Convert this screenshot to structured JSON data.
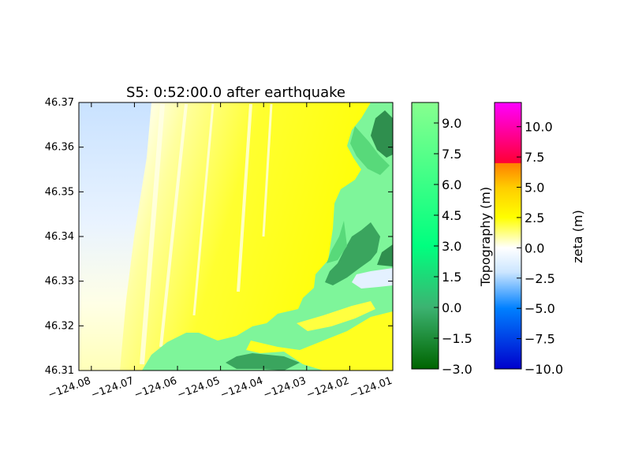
{
  "chart_data": {
    "type": "heatmap",
    "title": "S5: 0:52:00.0 after earthquake",
    "xlabel": "",
    "ylabel": "",
    "xlim": [
      -124.0829,
      -124.01
    ],
    "ylim": [
      46.31,
      46.37
    ],
    "x_ticks": [
      -124.08,
      -124.07,
      -124.06,
      -124.05,
      -124.04,
      -124.03,
      -124.02,
      -124.01
    ],
    "x_tick_labels": [
      "−124.08",
      "−124.07",
      "−124.06",
      "−124.05",
      "−124.04",
      "−124.03",
      "−124.02",
      "−124.01"
    ],
    "y_ticks": [
      46.31,
      46.32,
      46.33,
      46.34,
      46.35,
      46.36,
      46.37
    ],
    "y_tick_labels": [
      "46.31",
      "46.32",
      "46.33",
      "46.34",
      "46.35",
      "46.36",
      "46.37"
    ],
    "grid": false,
    "colorbars": [
      {
        "label": "Topography (m)",
        "range": [
          -3.0,
          10.0
        ],
        "ticks": [
          -3.0,
          -1.5,
          0.0,
          1.5,
          3.0,
          4.5,
          6.0,
          7.5,
          9.0
        ],
        "tick_labels": [
          "−3.0",
          "−1.5",
          "0.0",
          "1.5",
          "3.0",
          "4.5",
          "6.0",
          "7.5",
          "9.0"
        ],
        "colormap": [
          {
            "value": -3.0,
            "color": "#006400"
          },
          {
            "value": 0.0,
            "color": "#3cb371"
          },
          {
            "value": 3.0,
            "color": "#00ff7f"
          },
          {
            "value": 10.0,
            "color": "#87ff8f"
          }
        ]
      },
      {
        "label": "zeta (m)",
        "range": [
          -10.0,
          12.0
        ],
        "ticks": [
          -10.0,
          -7.5,
          -5.0,
          -2.5,
          0.0,
          2.5,
          5.0,
          7.5,
          10.0
        ],
        "tick_labels": [
          "−10.0",
          "−7.5",
          "−5.0",
          "−2.5",
          "0.0",
          "2.5",
          "5.0",
          "7.5",
          "10.0"
        ],
        "colormap": [
          {
            "value": -10.0,
            "color": "#0000cc"
          },
          {
            "value": -5.0,
            "color": "#0080ff"
          },
          {
            "value": -2.0,
            "color": "#cce6ff"
          },
          {
            "value": 0.0,
            "color": "#ffffff"
          },
          {
            "value": 2.5,
            "color": "#ffff00"
          },
          {
            "value": 5.0,
            "color": "#ffcc00"
          },
          {
            "value": 7.0,
            "color": "#ff7f00"
          },
          {
            "value": 7.0,
            "color": "#ff0033"
          },
          {
            "value": 12.0,
            "color": "#ff00ff"
          }
        ]
      }
    ],
    "colors": {
      "water_offshore": "#cce4ff",
      "water_surf": "#ffffcc",
      "water_inundation": "#ffff00",
      "land_high": "#7ef59a",
      "land_mid": "#58d97a",
      "land_low": "#2f8f4e",
      "channel_cut": "#e8f4ff"
    }
  }
}
